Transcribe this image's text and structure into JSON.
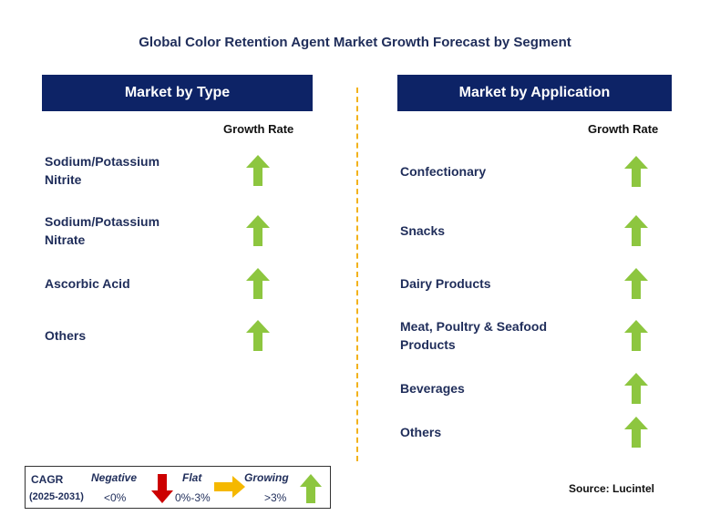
{
  "title": "Global Color Retention Agent Market Growth Forecast by Segment",
  "colors": {
    "header": "#0d2366",
    "growing": "#8dc63f",
    "negative": "#cc0000",
    "flat": "#f5b800",
    "divider": "#f2b21b"
  },
  "chart_data": {
    "type": "table",
    "title": "Global Color Retention Agent Market Growth Forecast by Segment",
    "panels": [
      {
        "header": "Market by Type",
        "column": "Growth Rate",
        "rows": [
          {
            "label": "Sodium/Potassium\nNitrite",
            "trend": "growing"
          },
          {
            "label": "Sodium/Potassium\nNitrate",
            "trend": "growing"
          },
          {
            "label": "Ascorbic Acid",
            "trend": "growing"
          },
          {
            "label": "Others",
            "trend": "growing"
          }
        ]
      },
      {
        "header": "Market by Application",
        "column": "Growth Rate",
        "rows": [
          {
            "label": "Confectionary",
            "trend": "growing"
          },
          {
            "label": "Snacks",
            "trend": "growing"
          },
          {
            "label": "Dairy Products",
            "trend": "growing"
          },
          {
            "label": "Meat, Poultry & Seafood\nProducts",
            "trend": "growing"
          },
          {
            "label": "Beverages",
            "trend": "growing"
          },
          {
            "label": "Others",
            "trend": "growing"
          }
        ]
      }
    ],
    "legend": {
      "cagr_label": "CAGR",
      "period": "(2025-2031)",
      "negative": {
        "label": "Negative",
        "range": "<0%"
      },
      "flat": {
        "label": "Flat",
        "range": "0%-3%"
      },
      "growing": {
        "label": "Growing",
        "range": ">3%"
      }
    },
    "source": "Source: Lucintel"
  }
}
